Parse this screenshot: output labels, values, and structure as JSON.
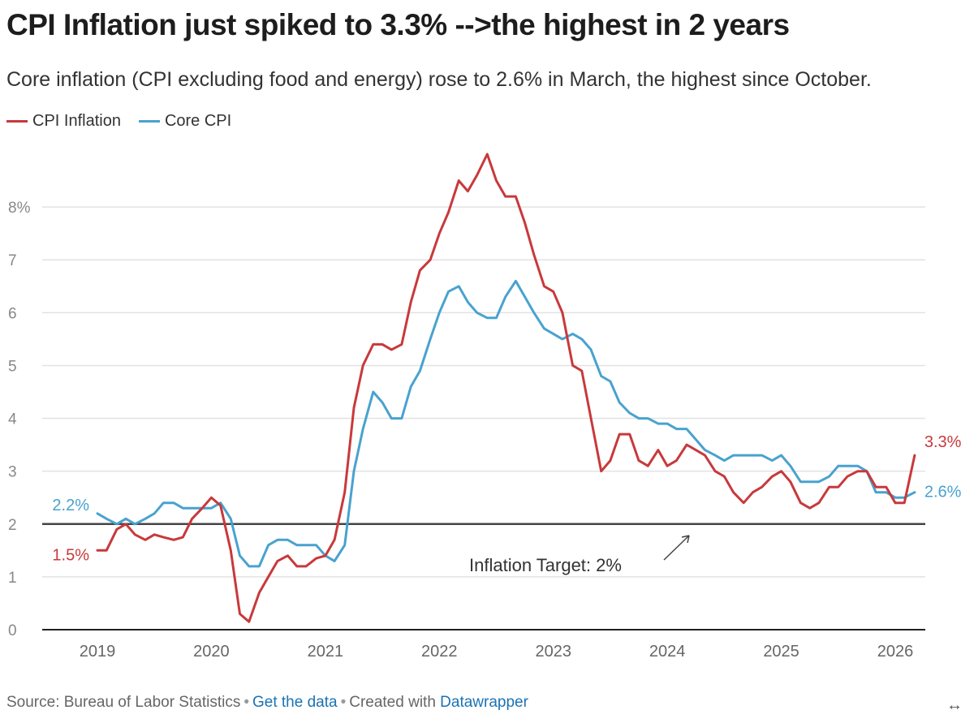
{
  "title": "CPI Inflation just spiked to 3.3% -->the highest in 2 years",
  "subtitle": "Core inflation (CPI excluding food and energy) rose to 2.6% in March, the highest since October.",
  "colors": {
    "cpi": "#c8393b",
    "core": "#49a2cf",
    "grid": "#e2e2e2",
    "axis": "#222222"
  },
  "legend": [
    {
      "label": "CPI Inflation",
      "color": "#c8393b"
    },
    {
      "label": "Core CPI",
      "color": "#49a2cf"
    }
  ],
  "footer": {
    "source": "Source: Bureau of Labor Statistics",
    "get_data": "Get the data",
    "created": "Created with",
    "tool": "Datawrapper"
  },
  "expand_icon": "↔",
  "chart_data": {
    "type": "line",
    "ylim": [
      0,
      9
    ],
    "xlim": [
      2019.0,
      2026.25
    ],
    "grid": true,
    "legend_position": "top-left",
    "y_ticks": [
      {
        "value": 0,
        "label": "0"
      },
      {
        "value": 1,
        "label": "1"
      },
      {
        "value": 2,
        "label": "2"
      },
      {
        "value": 3,
        "label": "3"
      },
      {
        "value": 4,
        "label": "4"
      },
      {
        "value": 5,
        "label": "5"
      },
      {
        "value": 6,
        "label": "6"
      },
      {
        "value": 7,
        "label": "7"
      },
      {
        "value": 8,
        "label": "8%"
      }
    ],
    "x_ticks": [
      {
        "value": 2019,
        "label": "2019"
      },
      {
        "value": 2020,
        "label": "2020"
      },
      {
        "value": 2021,
        "label": "2021"
      },
      {
        "value": 2022,
        "label": "2022"
      },
      {
        "value": 2023,
        "label": "2023"
      },
      {
        "value": 2024,
        "label": "2024"
      },
      {
        "value": 2025,
        "label": "2025"
      },
      {
        "value": 2026,
        "label": "2026"
      }
    ],
    "series": [
      {
        "name": "CPI Inflation",
        "color": "#c8393b",
        "points": [
          [
            2019.0,
            1.5
          ],
          [
            2019.08,
            1.5
          ],
          [
            2019.17,
            1.9
          ],
          [
            2019.25,
            2.0
          ],
          [
            2019.33,
            1.8
          ],
          [
            2019.42,
            1.7
          ],
          [
            2019.5,
            1.8
          ],
          [
            2019.58,
            1.75
          ],
          [
            2019.67,
            1.7
          ],
          [
            2019.75,
            1.75
          ],
          [
            2019.83,
            2.1
          ],
          [
            2019.92,
            2.3
          ],
          [
            2020.0,
            2.5
          ],
          [
            2020.08,
            2.35
          ],
          [
            2020.17,
            1.5
          ],
          [
            2020.25,
            0.3
          ],
          [
            2020.33,
            0.15
          ],
          [
            2020.42,
            0.7
          ],
          [
            2020.5,
            1.0
          ],
          [
            2020.58,
            1.3
          ],
          [
            2020.67,
            1.4
          ],
          [
            2020.75,
            1.2
          ],
          [
            2020.83,
            1.2
          ],
          [
            2020.92,
            1.35
          ],
          [
            2021.0,
            1.4
          ],
          [
            2021.08,
            1.7
          ],
          [
            2021.17,
            2.6
          ],
          [
            2021.25,
            4.2
          ],
          [
            2021.33,
            5.0
          ],
          [
            2021.42,
            5.4
          ],
          [
            2021.5,
            5.4
          ],
          [
            2021.58,
            5.3
          ],
          [
            2021.67,
            5.4
          ],
          [
            2021.75,
            6.2
          ],
          [
            2021.83,
            6.8
          ],
          [
            2021.92,
            7.0
          ],
          [
            2022.0,
            7.5
          ],
          [
            2022.08,
            7.9
          ],
          [
            2022.17,
            8.5
          ],
          [
            2022.25,
            8.3
          ],
          [
            2022.33,
            8.6
          ],
          [
            2022.42,
            9.0
          ],
          [
            2022.5,
            8.5
          ],
          [
            2022.58,
            8.2
          ],
          [
            2022.67,
            8.2
          ],
          [
            2022.75,
            7.7
          ],
          [
            2022.83,
            7.1
          ],
          [
            2022.92,
            6.5
          ],
          [
            2023.0,
            6.4
          ],
          [
            2023.08,
            6.0
          ],
          [
            2023.17,
            5.0
          ],
          [
            2023.25,
            4.9
          ],
          [
            2023.33,
            4.0
          ],
          [
            2023.42,
            3.0
          ],
          [
            2023.5,
            3.2
          ],
          [
            2023.58,
            3.7
          ],
          [
            2023.67,
            3.7
          ],
          [
            2023.75,
            3.2
          ],
          [
            2023.83,
            3.1
          ],
          [
            2023.92,
            3.4
          ],
          [
            2024.0,
            3.1
          ],
          [
            2024.08,
            3.2
          ],
          [
            2024.17,
            3.5
          ],
          [
            2024.25,
            3.4
          ],
          [
            2024.33,
            3.3
          ],
          [
            2024.42,
            3.0
          ],
          [
            2024.5,
            2.9
          ],
          [
            2024.58,
            2.6
          ],
          [
            2024.67,
            2.4
          ],
          [
            2024.75,
            2.6
          ],
          [
            2024.83,
            2.7
          ],
          [
            2024.92,
            2.9
          ],
          [
            2025.0,
            3.0
          ],
          [
            2025.08,
            2.8
          ],
          [
            2025.17,
            2.4
          ],
          [
            2025.25,
            2.3
          ],
          [
            2025.33,
            2.4
          ],
          [
            2025.42,
            2.7
          ],
          [
            2025.5,
            2.7
          ],
          [
            2025.58,
            2.9
          ],
          [
            2025.67,
            3.0
          ],
          [
            2025.75,
            3.0
          ],
          [
            2025.83,
            2.7
          ],
          [
            2025.92,
            2.7
          ],
          [
            2026.0,
            2.4
          ],
          [
            2026.08,
            2.4
          ],
          [
            2026.17,
            3.3
          ]
        ]
      },
      {
        "name": "Core CPI",
        "color": "#49a2cf",
        "points": [
          [
            2019.0,
            2.2
          ],
          [
            2019.08,
            2.1
          ],
          [
            2019.17,
            2.0
          ],
          [
            2019.25,
            2.1
          ],
          [
            2019.33,
            2.0
          ],
          [
            2019.42,
            2.1
          ],
          [
            2019.5,
            2.2
          ],
          [
            2019.58,
            2.4
          ],
          [
            2019.67,
            2.4
          ],
          [
            2019.75,
            2.3
          ],
          [
            2019.83,
            2.3
          ],
          [
            2019.92,
            2.3
          ],
          [
            2020.0,
            2.3
          ],
          [
            2020.08,
            2.4
          ],
          [
            2020.17,
            2.1
          ],
          [
            2020.25,
            1.4
          ],
          [
            2020.33,
            1.2
          ],
          [
            2020.42,
            1.2
          ],
          [
            2020.5,
            1.6
          ],
          [
            2020.58,
            1.7
          ],
          [
            2020.67,
            1.7
          ],
          [
            2020.75,
            1.6
          ],
          [
            2020.83,
            1.6
          ],
          [
            2020.92,
            1.6
          ],
          [
            2021.0,
            1.4
          ],
          [
            2021.08,
            1.3
          ],
          [
            2021.17,
            1.6
          ],
          [
            2021.25,
            3.0
          ],
          [
            2021.33,
            3.8
          ],
          [
            2021.42,
            4.5
          ],
          [
            2021.5,
            4.3
          ],
          [
            2021.58,
            4.0
          ],
          [
            2021.67,
            4.0
          ],
          [
            2021.75,
            4.6
          ],
          [
            2021.83,
            4.9
          ],
          [
            2021.92,
            5.5
          ],
          [
            2022.0,
            6.0
          ],
          [
            2022.08,
            6.4
          ],
          [
            2022.17,
            6.5
          ],
          [
            2022.25,
            6.2
          ],
          [
            2022.33,
            6.0
          ],
          [
            2022.42,
            5.9
          ],
          [
            2022.5,
            5.9
          ],
          [
            2022.58,
            6.3
          ],
          [
            2022.67,
            6.6
          ],
          [
            2022.75,
            6.3
          ],
          [
            2022.83,
            6.0
          ],
          [
            2022.92,
            5.7
          ],
          [
            2023.0,
            5.6
          ],
          [
            2023.08,
            5.5
          ],
          [
            2023.17,
            5.6
          ],
          [
            2023.25,
            5.5
          ],
          [
            2023.33,
            5.3
          ],
          [
            2023.42,
            4.8
          ],
          [
            2023.5,
            4.7
          ],
          [
            2023.58,
            4.3
          ],
          [
            2023.67,
            4.1
          ],
          [
            2023.75,
            4.0
          ],
          [
            2023.83,
            4.0
          ],
          [
            2023.92,
            3.9
          ],
          [
            2024.0,
            3.9
          ],
          [
            2024.08,
            3.8
          ],
          [
            2024.17,
            3.8
          ],
          [
            2024.25,
            3.6
          ],
          [
            2024.33,
            3.4
          ],
          [
            2024.42,
            3.3
          ],
          [
            2024.5,
            3.2
          ],
          [
            2024.58,
            3.3
          ],
          [
            2024.67,
            3.3
          ],
          [
            2024.75,
            3.3
          ],
          [
            2024.83,
            3.3
          ],
          [
            2024.92,
            3.2
          ],
          [
            2025.0,
            3.3
          ],
          [
            2025.08,
            3.1
          ],
          [
            2025.17,
            2.8
          ],
          [
            2025.25,
            2.8
          ],
          [
            2025.33,
            2.8
          ],
          [
            2025.42,
            2.9
          ],
          [
            2025.5,
            3.1
          ],
          [
            2025.58,
            3.1
          ],
          [
            2025.67,
            3.1
          ],
          [
            2025.75,
            3.0
          ],
          [
            2025.83,
            2.6
          ],
          [
            2025.92,
            2.6
          ],
          [
            2026.0,
            2.5
          ],
          [
            2026.08,
            2.5
          ],
          [
            2026.17,
            2.6
          ]
        ]
      }
    ],
    "reference_line": {
      "value": 2,
      "label": "Inflation Target: 2%"
    },
    "annotations": [
      {
        "label": "2.2%",
        "series": "Core CPI",
        "x": 2019.0,
        "y": 2.2,
        "side": "left"
      },
      {
        "label": "1.5%",
        "series": "CPI Inflation",
        "x": 2019.0,
        "y": 1.5,
        "side": "left"
      },
      {
        "label": "3.3%",
        "series": "CPI Inflation",
        "x": 2026.17,
        "y": 3.3,
        "side": "right"
      },
      {
        "label": "2.6%",
        "series": "Core CPI",
        "x": 2026.17,
        "y": 2.6,
        "side": "right"
      }
    ]
  }
}
